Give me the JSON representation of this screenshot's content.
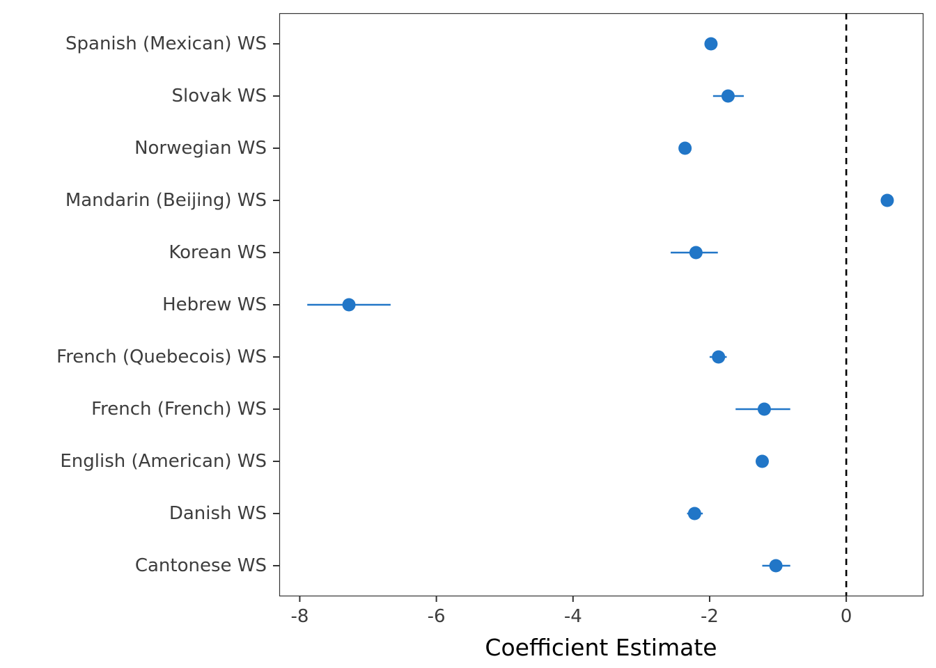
{
  "chart_data": {
    "type": "scatter",
    "title": "",
    "xlabel": "Coefficient Estimate",
    "ylabel": "",
    "xlim": [
      -8.3,
      1.12
    ],
    "xticks": [
      -8,
      -6,
      -4,
      -2,
      0
    ],
    "xtick_labels": [
      "-8",
      "-6",
      "-4",
      "-2",
      "0"
    ],
    "reference_line": 0,
    "grid": false,
    "legend": "none",
    "point_color": "#2176c7",
    "reference_line_color": "#000000",
    "categories": [
      "Spanish (Mexican) WS",
      "Slovak WS",
      "Norwegian WS",
      "Mandarin (Beijing) WS",
      "Korean WS",
      "Hebrew WS",
      "French (Quebecois) WS",
      "French (French) WS",
      "English (American) WS",
      "Danish WS",
      "Cantonese WS"
    ],
    "points": [
      {
        "label": "Spanish (Mexican) WS",
        "estimate": -1.98,
        "lower": -1.98,
        "upper": -1.98
      },
      {
        "label": "Slovak WS",
        "estimate": -1.73,
        "lower": -1.95,
        "upper": -1.5
      },
      {
        "label": "Norwegian WS",
        "estimate": -2.36,
        "lower": -2.36,
        "upper": -2.36
      },
      {
        "label": "Mandarin (Beijing) WS",
        "estimate": 0.6,
        "lower": 0.6,
        "upper": 0.6
      },
      {
        "label": "Korean WS",
        "estimate": -2.2,
        "lower": -2.57,
        "upper": -1.88
      },
      {
        "label": "Hebrew WS",
        "estimate": -7.28,
        "lower": -7.89,
        "upper": -6.67
      },
      {
        "label": "French (Quebecois) WS",
        "estimate": -1.87,
        "lower": -2.0,
        "upper": -1.75
      },
      {
        "label": "French (French) WS",
        "estimate": -1.2,
        "lower": -1.62,
        "upper": -0.82
      },
      {
        "label": "English (American) WS",
        "estimate": -1.23,
        "lower": -1.23,
        "upper": -1.23
      },
      {
        "label": "Danish WS",
        "estimate": -2.22,
        "lower": -2.33,
        "upper": -2.1
      },
      {
        "label": "Cantonese WS",
        "estimate": -1.03,
        "lower": -1.23,
        "upper": -0.82
      }
    ]
  }
}
